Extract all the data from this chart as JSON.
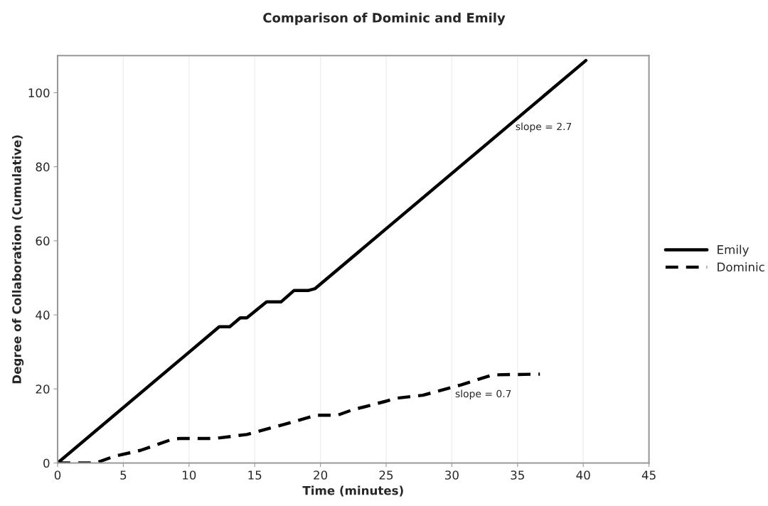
{
  "chart_data": {
    "type": "line",
    "title": "Comparison of Dominic and Emily",
    "xlabel": "Time (minutes)",
    "ylabel": "Degree of Collaboration (Cumulative)",
    "series": [
      {
        "name": "Emily",
        "color": "#000000",
        "line_style": "solid",
        "x": [
          0,
          12.3,
          13.1,
          13.9,
          14.4,
          15.9,
          17.0,
          18.0,
          19.1,
          19.6,
          40.2
        ],
        "values": [
          0,
          36.8,
          36.8,
          39.2,
          39.2,
          43.5,
          43.5,
          46.6,
          46.6,
          47.1,
          108.7
        ]
      },
      {
        "name": "Dominic",
        "color": "#000000",
        "line_style": "dashed",
        "x": [
          0,
          2.9,
          4.3,
          6.3,
          8.8,
          9.3,
          11.9,
          14.4,
          17.3,
          19.7,
          21.3,
          22.4,
          24.9,
          25.8,
          27.8,
          30.7,
          33.1,
          36.7
        ],
        "values": [
          0,
          0,
          1.8,
          3.4,
          6.5,
          6.6,
          6.6,
          7.7,
          10.5,
          12.9,
          12.9,
          14.3,
          16.6,
          17.5,
          18.3,
          21.1,
          23.8,
          24.0
        ]
      }
    ],
    "annotations": [
      "slope = 2.7",
      "slope = 0.7"
    ],
    "xlim": [
      0,
      45
    ],
    "xticks": [
      0,
      5,
      10,
      15,
      20,
      25,
      30,
      35,
      40,
      45
    ],
    "ylim": [
      0,
      110
    ],
    "yticks": [
      0,
      20,
      40,
      60,
      80,
      100
    ],
    "grid": "x",
    "legend": "right",
    "marker": "none"
  }
}
